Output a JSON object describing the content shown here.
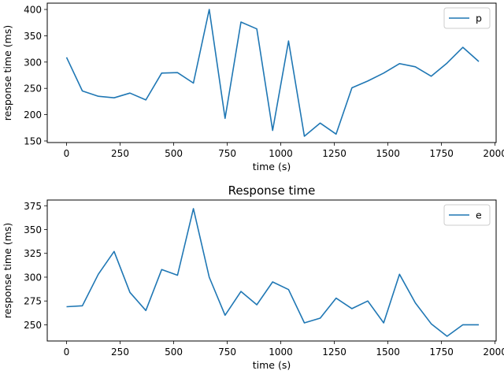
{
  "chart_data": [
    {
      "type": "line",
      "title": "",
      "xlabel": "time (s)",
      "ylabel": "response time (ms)",
      "xlim": [
        -90,
        2005
      ],
      "ylim": [
        147,
        412
      ],
      "xticks": [
        0,
        250,
        500,
        750,
        1000,
        1250,
        1500,
        1750,
        2000
      ],
      "yticks": [
        150,
        200,
        250,
        300,
        350,
        400
      ],
      "legend": "top-right",
      "color": "#1f77b4",
      "series": [
        {
          "name": "p",
          "x": [
            0,
            74,
            148,
            222,
            296,
            370,
            444,
            518,
            592,
            666,
            740,
            814,
            888,
            962,
            1036,
            1110,
            1184,
            1258,
            1332,
            1406,
            1480,
            1554,
            1628,
            1702,
            1776,
            1850,
            1924
          ],
          "y": [
            309,
            245,
            235,
            232,
            241,
            228,
            279,
            280,
            260,
            400,
            193,
            376,
            363,
            170,
            340,
            159,
            184,
            163,
            251,
            264,
            279,
            297,
            291,
            273,
            298,
            328,
            301
          ]
        }
      ]
    },
    {
      "type": "line",
      "title": "Response time",
      "xlabel": "time (s)",
      "ylabel": "response time (ms)",
      "xlim": [
        -90,
        2005
      ],
      "ylim": [
        233,
        381
      ],
      "xticks": [
        0,
        250,
        500,
        750,
        1000,
        1250,
        1500,
        1750,
        2000
      ],
      "yticks": [
        250,
        275,
        300,
        325,
        350,
        375
      ],
      "legend": "top-right",
      "color": "#1f77b4",
      "series": [
        {
          "name": "e",
          "x": [
            0,
            74,
            148,
            222,
            296,
            370,
            444,
            518,
            592,
            666,
            740,
            814,
            888,
            962,
            1036,
            1110,
            1184,
            1258,
            1332,
            1406,
            1480,
            1554,
            1628,
            1702,
            1776,
            1850,
            1924
          ],
          "y": [
            269,
            270,
            303,
            327,
            284,
            265,
            308,
            302,
            372,
            300,
            260,
            285,
            271,
            295,
            287,
            252,
            257,
            278,
            267,
            275,
            252,
            303,
            273,
            251,
            238,
            250,
            250
          ]
        }
      ]
    }
  ]
}
